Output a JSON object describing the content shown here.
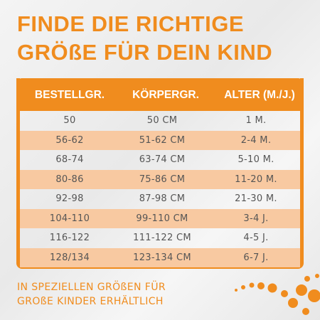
{
  "title": {
    "line1": "FINDE DIE RICHTIGE",
    "line2": "GRÖßE FÜR DEIN KIND"
  },
  "table": {
    "headers": [
      "BESTELLGR.",
      "KÖRPERGR.",
      "ALTER (M./J.)"
    ],
    "rows": [
      [
        "50",
        "50 CM",
        "1 M."
      ],
      [
        "56-62",
        "51-62 CM",
        "2-4 M."
      ],
      [
        "68-74",
        "63-74 CM",
        "5-10 M."
      ],
      [
        "80-86",
        "75-86 CM",
        "11-20 M."
      ],
      [
        "92-98",
        "87-98 CM",
        "21-30 M."
      ],
      [
        "104-110",
        "99-110 CM",
        "3-4 J."
      ],
      [
        "116-122",
        "111-122 CM",
        "4-5 J."
      ],
      [
        "128/134",
        "123-134 CM",
        "6-7 J."
      ]
    ]
  },
  "footer": {
    "line1": "IN SPEZIELLEN GRÖßEN FÜR",
    "line2": "GROßE KINDER ERHÄLTLICH"
  },
  "colors": {
    "accent": "#f08c1e",
    "row_highlight": "#f8c9a1"
  }
}
